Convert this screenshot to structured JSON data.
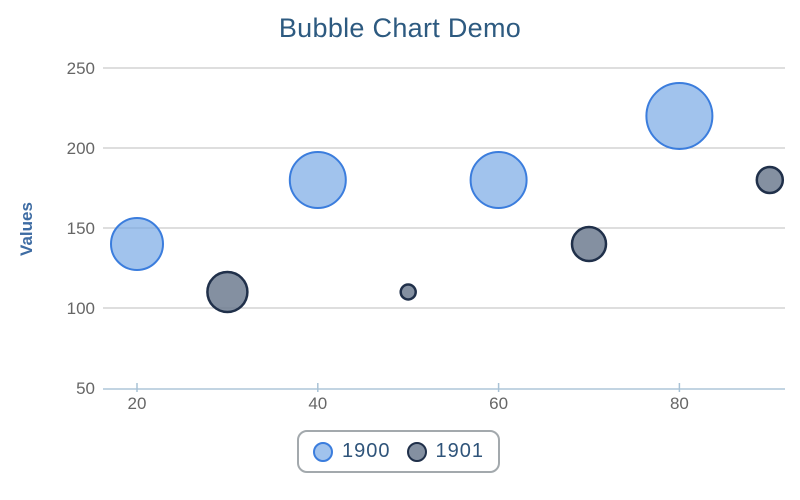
{
  "title": "Bubble Chart Demo",
  "axes": {
    "y_label": "Values",
    "y_tick_labels": [
      "50",
      "100",
      "150",
      "200",
      "250"
    ],
    "x_tick_labels": [
      "20",
      "40",
      "60",
      "80"
    ]
  },
  "legend": {
    "items": [
      "1900",
      "1901"
    ],
    "position": "bottom-center"
  },
  "colors": {
    "title": "#2d5a80",
    "axis_label": "#3e6ca3",
    "tick_label": "#666666",
    "gridline": "#c9c9c9",
    "x_axis_line": "#c2d4e2",
    "x_axis_tick": "#a9c2d6",
    "legend_border": "#a3a9ad",
    "series_1900_stroke": "#3b7ddd",
    "series_1900_fill": "rgba(110,163,228,0.65)",
    "series_1901_stroke": "#20304a",
    "series_1901_fill": "rgba(111,125,144,0.85)"
  },
  "chart_data": {
    "type": "scatter",
    "subtype": "bubble",
    "title": "Bubble Chart Demo",
    "xlabel": "",
    "ylabel": "Values",
    "xlim": [
      16,
      92
    ],
    "ylim": [
      50,
      250
    ],
    "x_ticks": [
      20,
      40,
      60,
      80
    ],
    "y_ticks": [
      50,
      100,
      150,
      200,
      250
    ],
    "grid": "horizontal",
    "legend_position": "bottom-center",
    "series": [
      {
        "name": "1900",
        "stroke": "#3b7ddd",
        "fill": "rgba(110,163,228,0.65)",
        "stroke_width": 2,
        "points": [
          {
            "x": 20,
            "y": 140,
            "r": 26
          },
          {
            "x": 40,
            "y": 180,
            "r": 28
          },
          {
            "x": 60,
            "y": 180,
            "r": 28
          },
          {
            "x": 80,
            "y": 220,
            "r": 33
          }
        ]
      },
      {
        "name": "1901",
        "stroke": "#20304a",
        "fill": "rgba(111,125,144,0.85)",
        "stroke_width": 2.5,
        "points": [
          {
            "x": 30,
            "y": 110,
            "r": 20
          },
          {
            "x": 50,
            "y": 110,
            "r": 7.5
          },
          {
            "x": 70,
            "y": 140,
            "r": 17
          },
          {
            "x": 90,
            "y": 180,
            "r": 13
          }
        ]
      }
    ]
  }
}
